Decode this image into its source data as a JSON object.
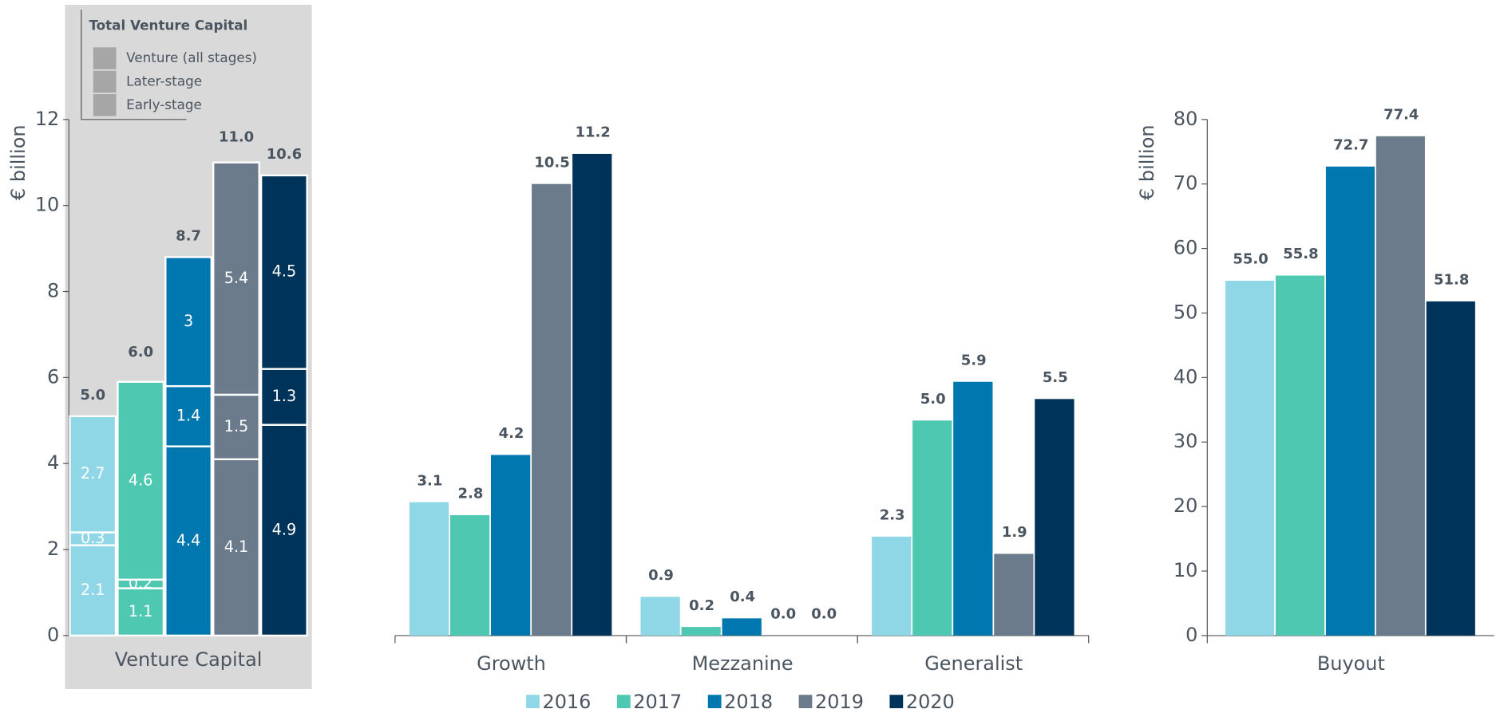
{
  "chart_data": [
    {
      "type": "stacked_bar",
      "y_label": "€ billion",
      "x_label": "Venture Capital",
      "legend_title": "Total Venture Capital",
      "bar_colors": [
        "#8fd6e6",
        "#4fc8b2",
        "#0077ae",
        "#6b7b8c",
        "#00335a"
      ],
      "series": [
        {
          "name": "Early-stage",
          "values": [
            2.1,
            1.1,
            4.4,
            4.1,
            4.9
          ]
        },
        {
          "name": "Later-stage",
          "values": [
            0.3,
            0.2,
            1.4,
            1.5,
            1.3
          ]
        },
        {
          "name": "Venture (all stages)",
          "values": [
            2.7,
            4.6,
            3.0,
            5.4,
            4.5
          ]
        }
      ],
      "totals": [
        5.0,
        6.0,
        8.7,
        11.0,
        10.6
      ],
      "totals_labels": [
        "5.0",
        "6.0",
        "8.7",
        "11.0",
        "10.6"
      ],
      "ylim": [
        0,
        12
      ],
      "yticks": [
        0,
        2,
        4,
        6,
        8,
        10,
        12
      ]
    },
    {
      "type": "bar",
      "categories": [
        "Growth",
        "Mezzanine",
        "Generalist"
      ],
      "series": [
        {
          "name": "2016",
          "color": "#8fd6e6",
          "values": [
            3.1,
            0.9,
            2.3
          ],
          "value_labels": [
            "3.1",
            "0.9",
            "2.3"
          ]
        },
        {
          "name": "2017",
          "color": "#4fc8b2",
          "values": [
            2.8,
            0.2,
            5.0
          ],
          "value_labels": [
            "2.8",
            "0.2",
            "5.0"
          ]
        },
        {
          "name": "2018",
          "color": "#0077ae",
          "values": [
            4.2,
            0.4,
            5.9
          ],
          "value_labels": [
            "4.2",
            "0.4",
            "5.9"
          ]
        },
        {
          "name": "2019",
          "color": "#6b7b8c",
          "values": [
            10.5,
            0.0,
            1.9
          ],
          "value_labels": [
            "10.5",
            "0.0",
            "1.9"
          ]
        },
        {
          "name": "2020",
          "color": "#00335a",
          "values": [
            11.2,
            0.0,
            5.5
          ],
          "value_labels": [
            "11.2",
            "0.0",
            "5.5"
          ]
        }
      ],
      "ylim": [
        0,
        12
      ]
    },
    {
      "type": "bar",
      "y_label": "€ billion",
      "categories": [
        "Buyout"
      ],
      "series": [
        {
          "name": "2016",
          "color": "#8fd6e6",
          "values": [
            55.0
          ],
          "value_labels": [
            "55.0"
          ]
        },
        {
          "name": "2017",
          "color": "#4fc8b2",
          "values": [
            55.8
          ],
          "value_labels": [
            "55.8"
          ]
        },
        {
          "name": "2018",
          "color": "#0077ae",
          "values": [
            72.7
          ],
          "value_labels": [
            "72.7"
          ]
        },
        {
          "name": "2019",
          "color": "#6b7b8c",
          "values": [
            77.4
          ],
          "value_labels": [
            "77.4"
          ]
        },
        {
          "name": "2020",
          "color": "#00335a",
          "values": [
            51.8
          ],
          "value_labels": [
            "51.8"
          ]
        }
      ],
      "ylim": [
        0,
        80
      ],
      "yticks": [
        0,
        10,
        20,
        30,
        40,
        50,
        60,
        70,
        80
      ]
    }
  ]
}
